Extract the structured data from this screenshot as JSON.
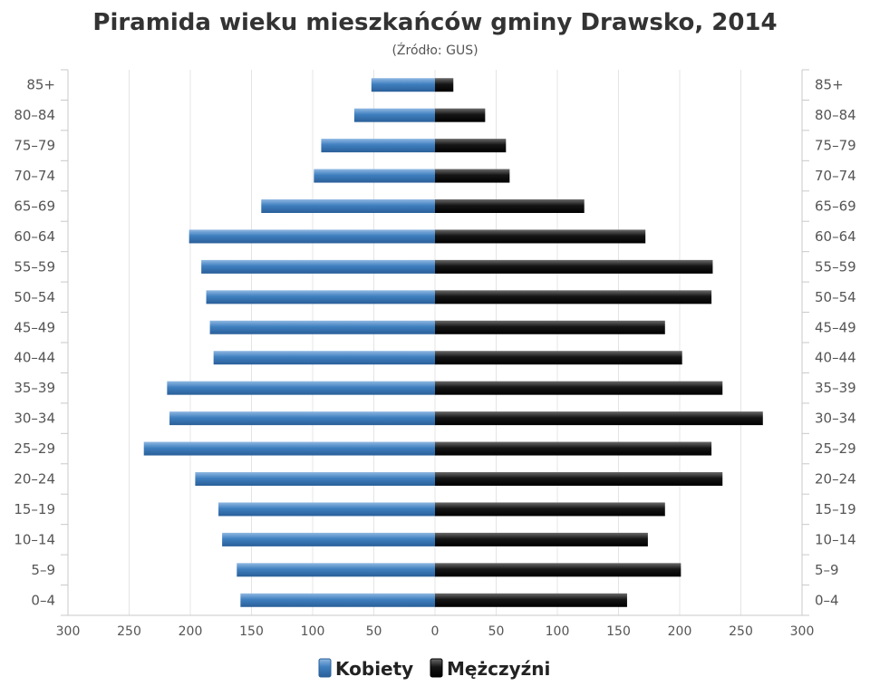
{
  "chart_data": {
    "type": "bar",
    "orientation": "horizontal-pyramid",
    "title": "Piramida wieku mieszkańców gminy Drawsko, 2014",
    "subtitle": "(Źródło: GUS)",
    "categories": [
      "85+",
      "80–84",
      "75–79",
      "70–74",
      "65–69",
      "60–64",
      "55–59",
      "50–54",
      "45–49",
      "40–44",
      "35–39",
      "30–34",
      "25–29",
      "20–24",
      "15–19",
      "10–14",
      "5–9",
      "0–4"
    ],
    "series": [
      {
        "name": "Kobiety",
        "color": "#3f7fbf",
        "values": [
          52,
          66,
          93,
          99,
          142,
          201,
          191,
          187,
          184,
          181,
          219,
          217,
          238,
          196,
          177,
          174,
          162,
          159
        ]
      },
      {
        "name": "Mężczyźni",
        "color": "#151515",
        "values": [
          15,
          41,
          58,
          61,
          122,
          172,
          227,
          226,
          188,
          202,
          235,
          268,
          226,
          235,
          188,
          174,
          201,
          157
        ]
      }
    ],
    "xlim": [
      -300,
      300
    ],
    "x_ticks": [
      "300",
      "250",
      "200",
      "150",
      "100",
      "50",
      "0",
      "50",
      "100",
      "150",
      "200",
      "250",
      "300"
    ],
    "grid": true,
    "legend": "bottom-center"
  }
}
